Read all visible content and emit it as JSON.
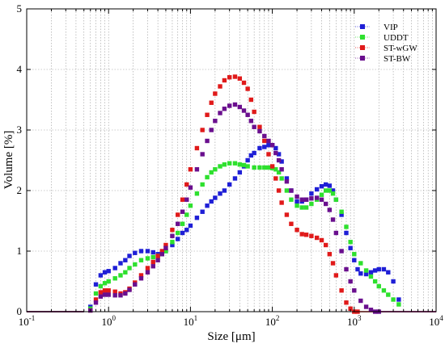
{
  "chart_data": {
    "type": "scatter",
    "title": "",
    "xlabel": "Size [μm]",
    "ylabel": "Volume [%]",
    "x_scale": "log",
    "xlim": [
      0.1,
      10000
    ],
    "ylim": [
      0,
      5
    ],
    "y_ticks": [
      "0",
      "1",
      "2",
      "3",
      "4",
      "5"
    ],
    "x_ticks": [
      {
        "base": "10",
        "exp": "-1"
      },
      {
        "base": "10",
        "exp": "0"
      },
      {
        "base": "10",
        "exp": "1"
      },
      {
        "base": "10",
        "exp": "2"
      },
      {
        "base": "10",
        "exp": "3"
      },
      {
        "base": "10",
        "exp": "4"
      }
    ],
    "grid": true,
    "legend_position": "top-right",
    "series": [
      {
        "name": "VIP",
        "color": "#1f1fd6",
        "points": [
          [
            0.1,
            0
          ],
          [
            0.5,
            0
          ],
          [
            0.6,
            0.08
          ],
          [
            0.7,
            0.45
          ],
          [
            0.8,
            0.6
          ],
          [
            0.9,
            0.65
          ],
          [
            1.0,
            0.67
          ],
          [
            1.2,
            0.72
          ],
          [
            1.4,
            0.8
          ],
          [
            1.6,
            0.85
          ],
          [
            1.8,
            0.92
          ],
          [
            2.1,
            0.97
          ],
          [
            2.5,
            1.0
          ],
          [
            3,
            1.0
          ],
          [
            3.5,
            0.98
          ],
          [
            4,
            0.95
          ],
          [
            4.5,
            0.96
          ],
          [
            5,
            1.0
          ],
          [
            6,
            1.1
          ],
          [
            7,
            1.2
          ],
          [
            8,
            1.3
          ],
          [
            9,
            1.35
          ],
          [
            10,
            1.42
          ],
          [
            12,
            1.55
          ],
          [
            14,
            1.65
          ],
          [
            16,
            1.75
          ],
          [
            18,
            1.82
          ],
          [
            20,
            1.88
          ],
          [
            23,
            1.95
          ],
          [
            26,
            2.0
          ],
          [
            30,
            2.1
          ],
          [
            35,
            2.2
          ],
          [
            40,
            2.3
          ],
          [
            45,
            2.4
          ],
          [
            50,
            2.5
          ],
          [
            55,
            2.58
          ],
          [
            60,
            2.62
          ],
          [
            70,
            2.7
          ],
          [
            80,
            2.72
          ],
          [
            90,
            2.75
          ],
          [
            100,
            2.75
          ],
          [
            110,
            2.7
          ],
          [
            120,
            2.6
          ],
          [
            130,
            2.48
          ],
          [
            150,
            2.2
          ],
          [
            170,
            2.0
          ],
          [
            200,
            1.82
          ],
          [
            230,
            1.82
          ],
          [
            260,
            1.85
          ],
          [
            300,
            1.95
          ],
          [
            350,
            2.02
          ],
          [
            400,
            2.07
          ],
          [
            450,
            2.1
          ],
          [
            500,
            2.08
          ],
          [
            550,
            2.0
          ],
          [
            600,
            1.85
          ],
          [
            700,
            1.6
          ],
          [
            800,
            1.3
          ],
          [
            900,
            1.05
          ],
          [
            1000,
            0.85
          ],
          [
            1100,
            0.7
          ],
          [
            1200,
            0.63
          ],
          [
            1400,
            0.62
          ],
          [
            1600,
            0.65
          ],
          [
            1800,
            0.68
          ],
          [
            2000,
            0.7
          ],
          [
            2300,
            0.7
          ],
          [
            2600,
            0.65
          ],
          [
            3000,
            0.5
          ],
          [
            3500,
            0.2
          ],
          [
            3700,
            0.05
          ]
        ]
      },
      {
        "name": "UDDT",
        "color": "#2ee02e",
        "points": [
          [
            0.1,
            0
          ],
          [
            0.5,
            0
          ],
          [
            0.6,
            0.05
          ],
          [
            0.7,
            0.3
          ],
          [
            0.8,
            0.42
          ],
          [
            0.9,
            0.47
          ],
          [
            1.0,
            0.5
          ],
          [
            1.2,
            0.55
          ],
          [
            1.4,
            0.6
          ],
          [
            1.6,
            0.65
          ],
          [
            1.8,
            0.72
          ],
          [
            2.1,
            0.78
          ],
          [
            2.5,
            0.85
          ],
          [
            3,
            0.88
          ],
          [
            3.5,
            0.9
          ],
          [
            4,
            0.92
          ],
          [
            4.5,
            0.95
          ],
          [
            5,
            1.0
          ],
          [
            6,
            1.15
          ],
          [
            7,
            1.3
          ],
          [
            8,
            1.45
          ],
          [
            9,
            1.6
          ],
          [
            10,
            1.75
          ],
          [
            12,
            1.95
          ],
          [
            14,
            2.1
          ],
          [
            16,
            2.22
          ],
          [
            18,
            2.3
          ],
          [
            20,
            2.35
          ],
          [
            23,
            2.4
          ],
          [
            26,
            2.43
          ],
          [
            30,
            2.45
          ],
          [
            35,
            2.45
          ],
          [
            40,
            2.43
          ],
          [
            45,
            2.42
          ],
          [
            50,
            2.4
          ],
          [
            60,
            2.38
          ],
          [
            70,
            2.38
          ],
          [
            80,
            2.38
          ],
          [
            90,
            2.38
          ],
          [
            100,
            2.37
          ],
          [
            110,
            2.35
          ],
          [
            120,
            2.3
          ],
          [
            130,
            2.2
          ],
          [
            150,
            2.0
          ],
          [
            170,
            1.85
          ],
          [
            200,
            1.75
          ],
          [
            230,
            1.72
          ],
          [
            260,
            1.72
          ],
          [
            300,
            1.78
          ],
          [
            350,
            1.85
          ],
          [
            400,
            1.93
          ],
          [
            450,
            2.0
          ],
          [
            500,
            2.0
          ],
          [
            550,
            1.95
          ],
          [
            600,
            1.85
          ],
          [
            700,
            1.65
          ],
          [
            800,
            1.4
          ],
          [
            900,
            1.15
          ],
          [
            1000,
            0.95
          ],
          [
            1200,
            0.8
          ],
          [
            1400,
            0.68
          ],
          [
            1600,
            0.58
          ],
          [
            1800,
            0.5
          ],
          [
            2000,
            0.42
          ],
          [
            2300,
            0.35
          ],
          [
            2600,
            0.28
          ],
          [
            3000,
            0.2
          ],
          [
            3500,
            0.12
          ],
          [
            3700,
            0.05
          ]
        ]
      },
      {
        "name": "ST-wGW",
        "color": "#e01a1a",
        "points": [
          [
            0.1,
            0
          ],
          [
            0.5,
            0
          ],
          [
            0.6,
            0.02
          ],
          [
            0.7,
            0.2
          ],
          [
            0.8,
            0.32
          ],
          [
            0.9,
            0.35
          ],
          [
            1.0,
            0.35
          ],
          [
            1.2,
            0.33
          ],
          [
            1.4,
            0.3
          ],
          [
            1.6,
            0.32
          ],
          [
            1.8,
            0.38
          ],
          [
            2.1,
            0.48
          ],
          [
            2.5,
            0.6
          ],
          [
            3,
            0.72
          ],
          [
            3.5,
            0.82
          ],
          [
            4,
            0.92
          ],
          [
            4.5,
            1.0
          ],
          [
            5,
            1.1
          ],
          [
            6,
            1.35
          ],
          [
            7,
            1.6
          ],
          [
            8,
            1.85
          ],
          [
            9,
            2.1
          ],
          [
            10,
            2.35
          ],
          [
            12,
            2.7
          ],
          [
            14,
            3.0
          ],
          [
            16,
            3.25
          ],
          [
            18,
            3.45
          ],
          [
            20,
            3.6
          ],
          [
            23,
            3.72
          ],
          [
            26,
            3.82
          ],
          [
            30,
            3.87
          ],
          [
            35,
            3.88
          ],
          [
            40,
            3.85
          ],
          [
            45,
            3.78
          ],
          [
            50,
            3.68
          ],
          [
            55,
            3.5
          ],
          [
            60,
            3.3
          ],
          [
            70,
            3.05
          ],
          [
            80,
            2.82
          ],
          [
            90,
            2.6
          ],
          [
            100,
            2.4
          ],
          [
            110,
            2.2
          ],
          [
            120,
            2.0
          ],
          [
            130,
            1.8
          ],
          [
            150,
            1.6
          ],
          [
            170,
            1.45
          ],
          [
            200,
            1.35
          ],
          [
            230,
            1.28
          ],
          [
            260,
            1.27
          ],
          [
            300,
            1.25
          ],
          [
            350,
            1.22
          ],
          [
            400,
            1.18
          ],
          [
            450,
            1.1
          ],
          [
            500,
            0.95
          ],
          [
            550,
            0.8
          ],
          [
            600,
            0.6
          ],
          [
            700,
            0.35
          ],
          [
            800,
            0.15
          ],
          [
            900,
            0.05
          ],
          [
            1000,
            0.0
          ],
          [
            1100,
            0
          ],
          [
            10000,
            0
          ]
        ]
      },
      {
        "name": "ST-BW",
        "color": "#6a0f8e",
        "points": [
          [
            0.1,
            0
          ],
          [
            0.5,
            0
          ],
          [
            0.6,
            0.02
          ],
          [
            0.7,
            0.15
          ],
          [
            0.8,
            0.25
          ],
          [
            0.9,
            0.28
          ],
          [
            1.0,
            0.28
          ],
          [
            1.2,
            0.27
          ],
          [
            1.4,
            0.27
          ],
          [
            1.6,
            0.3
          ],
          [
            1.8,
            0.36
          ],
          [
            2.1,
            0.45
          ],
          [
            2.5,
            0.55
          ],
          [
            3,
            0.65
          ],
          [
            3.5,
            0.75
          ],
          [
            4,
            0.85
          ],
          [
            4.5,
            0.95
          ],
          [
            5,
            1.05
          ],
          [
            6,
            1.25
          ],
          [
            7,
            1.45
          ],
          [
            8,
            1.65
          ],
          [
            9,
            1.85
          ],
          [
            10,
            2.05
          ],
          [
            12,
            2.35
          ],
          [
            14,
            2.6
          ],
          [
            16,
            2.82
          ],
          [
            18,
            3.0
          ],
          [
            20,
            3.15
          ],
          [
            23,
            3.28
          ],
          [
            26,
            3.35
          ],
          [
            30,
            3.4
          ],
          [
            35,
            3.42
          ],
          [
            40,
            3.38
          ],
          [
            45,
            3.32
          ],
          [
            50,
            3.25
          ],
          [
            55,
            3.15
          ],
          [
            60,
            3.05
          ],
          [
            70,
            2.98
          ],
          [
            80,
            2.9
          ],
          [
            90,
            2.82
          ],
          [
            100,
            2.75
          ],
          [
            110,
            2.62
          ],
          [
            120,
            2.5
          ],
          [
            130,
            2.35
          ],
          [
            150,
            2.15
          ],
          [
            170,
            2.0
          ],
          [
            200,
            1.9
          ],
          [
            230,
            1.85
          ],
          [
            260,
            1.85
          ],
          [
            300,
            1.87
          ],
          [
            350,
            1.88
          ],
          [
            400,
            1.85
          ],
          [
            450,
            1.78
          ],
          [
            500,
            1.68
          ],
          [
            550,
            1.52
          ],
          [
            600,
            1.3
          ],
          [
            700,
            1.0
          ],
          [
            800,
            0.7
          ],
          [
            900,
            0.5
          ],
          [
            1000,
            0.35
          ],
          [
            1200,
            0.18
          ],
          [
            1400,
            0.08
          ],
          [
            1600,
            0.03
          ],
          [
            1800,
            0.0
          ],
          [
            2000,
            0
          ],
          [
            10000,
            0
          ]
        ]
      }
    ]
  }
}
